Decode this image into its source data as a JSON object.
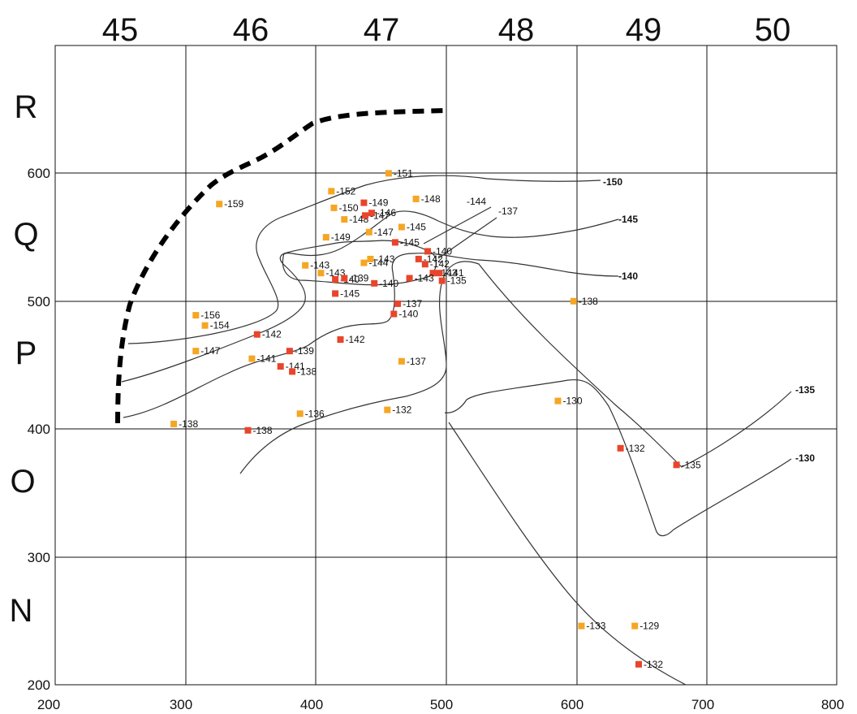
{
  "grid": {
    "columns": [
      "45",
      "46",
      "47",
      "48",
      "49",
      "50"
    ],
    "rows": [
      "R",
      "Q",
      "P",
      "O",
      "N"
    ]
  },
  "axes": {
    "x_ticks": [
      "200",
      "300",
      "400",
      "500",
      "600",
      "700",
      "800"
    ],
    "y_ticks": [
      "600",
      "500",
      "400",
      "300",
      "200"
    ]
  },
  "contours": [
    {
      "label": "-150"
    },
    {
      "label": "-145"
    },
    {
      "label": "-140"
    },
    {
      "label": "-135"
    },
    {
      "label": "-130"
    }
  ],
  "colors": {
    "orange": "#f5a623",
    "red": "#e8452c",
    "line": "#333333"
  },
  "markers": [
    {
      "x": 326,
      "y": 576,
      "color": "orange",
      "label": "-159"
    },
    {
      "x": 456,
      "y": 600,
      "color": "orange",
      "label": "-151"
    },
    {
      "x": 412,
      "y": 586,
      "color": "orange",
      "label": "-152"
    },
    {
      "x": 414,
      "y": 573,
      "color": "orange",
      "label": "-150"
    },
    {
      "x": 437,
      "y": 577,
      "color": "red",
      "label": "-149"
    },
    {
      "x": 477,
      "y": 580,
      "color": "orange",
      "label": "-148"
    },
    {
      "x": 422,
      "y": 564,
      "color": "orange",
      "label": "-148"
    },
    {
      "x": 438,
      "y": 567,
      "color": "red",
      "label": "-147"
    },
    {
      "x": 443,
      "y": 569,
      "color": "red",
      "label": "-146"
    },
    {
      "x": 466,
      "y": 558,
      "color": "orange",
      "label": "-145"
    },
    {
      "x": 408,
      "y": 550,
      "color": "orange",
      "label": "-149"
    },
    {
      "x": 441,
      "y": 554,
      "color": "orange",
      "label": "-147"
    },
    {
      "x": 461,
      "y": 546,
      "color": "red",
      "label": "-145"
    },
    {
      "x": 486,
      "y": 539,
      "color": "red",
      "label": "-140"
    },
    {
      "x": 479,
      "y": 533,
      "color": "red",
      "label": "-142"
    },
    {
      "x": 392,
      "y": 528,
      "color": "orange",
      "label": "-143"
    },
    {
      "x": 404,
      "y": 522,
      "color": "orange",
      "label": "-143"
    },
    {
      "x": 437,
      "y": 530,
      "color": "orange",
      "label": "-144"
    },
    {
      "x": 442,
      "y": 533,
      "color": "orange",
      "label": "-143"
    },
    {
      "x": 484,
      "y": 529,
      "color": "red",
      "label": "-142"
    },
    {
      "x": 490,
      "y": 522,
      "color": "red",
      "label": "-143"
    },
    {
      "x": 495,
      "y": 522,
      "color": "red",
      "label": "-141"
    },
    {
      "x": 472,
      "y": 518,
      "color": "red",
      "label": "-143"
    },
    {
      "x": 497,
      "y": 516,
      "color": "red",
      "label": "-135"
    },
    {
      "x": 415,
      "y": 517,
      "color": "red",
      "label": "-140"
    },
    {
      "x": 422,
      "y": 518,
      "color": "red",
      "label": "-139"
    },
    {
      "x": 445,
      "y": 514,
      "color": "red",
      "label": "-140"
    },
    {
      "x": 415,
      "y": 506,
      "color": "red",
      "label": "-145"
    },
    {
      "x": 463,
      "y": 498,
      "color": "red",
      "label": "-137"
    },
    {
      "x": 460,
      "y": 490,
      "color": "red",
      "label": "-140"
    },
    {
      "x": 598,
      "y": 500,
      "color": "orange",
      "label": "-138"
    },
    {
      "x": 308,
      "y": 489,
      "color": "orange",
      "label": "-156"
    },
    {
      "x": 315,
      "y": 481,
      "color": "orange",
      "label": "-154"
    },
    {
      "x": 355,
      "y": 474,
      "color": "red",
      "label": "-142"
    },
    {
      "x": 419,
      "y": 470,
      "color": "red",
      "label": "-142"
    },
    {
      "x": 308,
      "y": 461,
      "color": "orange",
      "label": "-147"
    },
    {
      "x": 380,
      "y": 461,
      "color": "red",
      "label": "-139"
    },
    {
      "x": 351,
      "y": 455,
      "color": "orange",
      "label": "-141"
    },
    {
      "x": 373,
      "y": 449,
      "color": "red",
      "label": "-141"
    },
    {
      "x": 382,
      "y": 445,
      "color": "red",
      "label": "-138"
    },
    {
      "x": 466,
      "y": 453,
      "color": "orange",
      "label": "-137"
    },
    {
      "x": 586,
      "y": 422,
      "color": "orange",
      "label": "-130"
    },
    {
      "x": 388,
      "y": 412,
      "color": "orange",
      "label": "-136"
    },
    {
      "x": 455,
      "y": 415,
      "color": "orange",
      "label": "-132"
    },
    {
      "x": 291,
      "y": 404,
      "color": "orange",
      "label": "-138"
    },
    {
      "x": 348,
      "y": 399,
      "color": "red",
      "label": "-138"
    },
    {
      "x": 634,
      "y": 385,
      "color": "red",
      "label": "-132"
    },
    {
      "x": 677,
      "y": 372,
      "color": "red",
      "label": "-135"
    },
    {
      "x": 604,
      "y": 246,
      "color": "orange",
      "label": "-133"
    },
    {
      "x": 645,
      "y": 246,
      "color": "orange",
      "label": "-129"
    },
    {
      "x": 648,
      "y": 216,
      "color": "red",
      "label": "-132"
    }
  ]
}
